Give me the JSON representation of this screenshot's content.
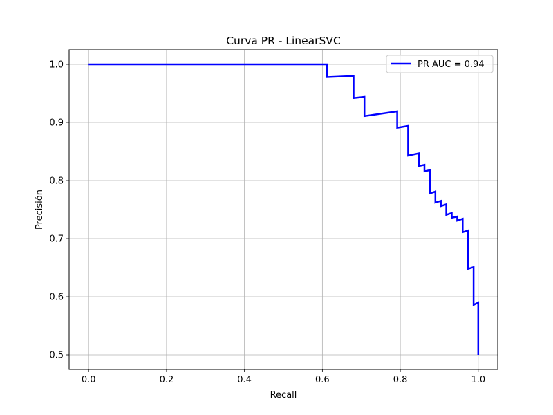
{
  "chart_data": {
    "type": "line",
    "title": "Curva PR - LinearSVC",
    "xlabel": "Recall",
    "ylabel": "Precisión",
    "xlim": [
      -0.05,
      1.05
    ],
    "ylim": [
      0.475,
      1.025
    ],
    "xticks": [
      0.0,
      0.2,
      0.4,
      0.6,
      0.8,
      1.0
    ],
    "xtick_labels": [
      "0.0",
      "0.2",
      "0.4",
      "0.6",
      "0.8",
      "1.0"
    ],
    "yticks": [
      0.5,
      0.6,
      0.7,
      0.8,
      0.9,
      1.0
    ],
    "ytick_labels": [
      "0.5",
      "0.6",
      "0.7",
      "0.8",
      "0.9",
      "1.0"
    ],
    "grid": true,
    "legend_position": "top-right",
    "series": [
      {
        "name": "PR AUC = 0.94",
        "color": "#0000ff",
        "x": [
          0.0,
          0.612,
          0.612,
          0.68,
          0.68,
          0.708,
          0.708,
          0.792,
          0.792,
          0.82,
          0.82,
          0.848,
          0.848,
          0.862,
          0.862,
          0.876,
          0.876,
          0.89,
          0.89,
          0.904,
          0.904,
          0.918,
          0.918,
          0.932,
          0.932,
          0.946,
          0.946,
          0.96,
          0.96,
          0.974,
          0.974,
          0.988,
          0.988,
          1.0,
          1.0
        ],
        "y": [
          1.0,
          1.0,
          0.978,
          0.98,
          0.942,
          0.944,
          0.911,
          0.919,
          0.891,
          0.894,
          0.843,
          0.847,
          0.825,
          0.827,
          0.816,
          0.818,
          0.778,
          0.781,
          0.762,
          0.765,
          0.756,
          0.759,
          0.741,
          0.744,
          0.736,
          0.738,
          0.731,
          0.734,
          0.711,
          0.714,
          0.648,
          0.651,
          0.586,
          0.59,
          0.5
        ]
      }
    ]
  }
}
